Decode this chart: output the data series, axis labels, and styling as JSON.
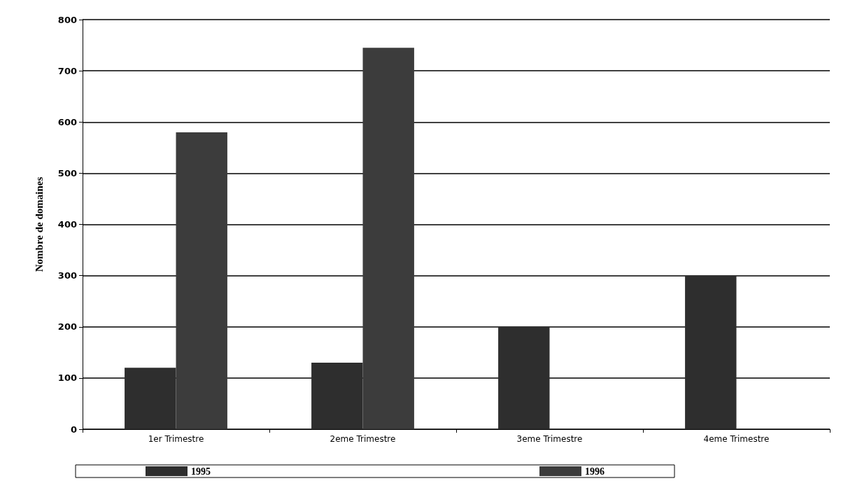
{
  "chart_data": {
    "type": "bar",
    "ylabel": "Nombre de domaines",
    "categories": [
      "1er Trimestre",
      "2eme Trimestre",
      "3eme Trimestre",
      "4eme Trimestre"
    ],
    "series": [
      {
        "name": "1995",
        "color": "#2e2e2e",
        "values": [
          120,
          130,
          200,
          300
        ]
      },
      {
        "name": "1996",
        "color": "#3c3c3c",
        "values": [
          580,
          745,
          null,
          null
        ]
      }
    ],
    "ylim": [
      0,
      800
    ],
    "yticks": [
      0,
      100,
      200,
      300,
      400,
      500,
      600,
      700,
      800
    ],
    "grid": "y",
    "legend": "bottom"
  }
}
